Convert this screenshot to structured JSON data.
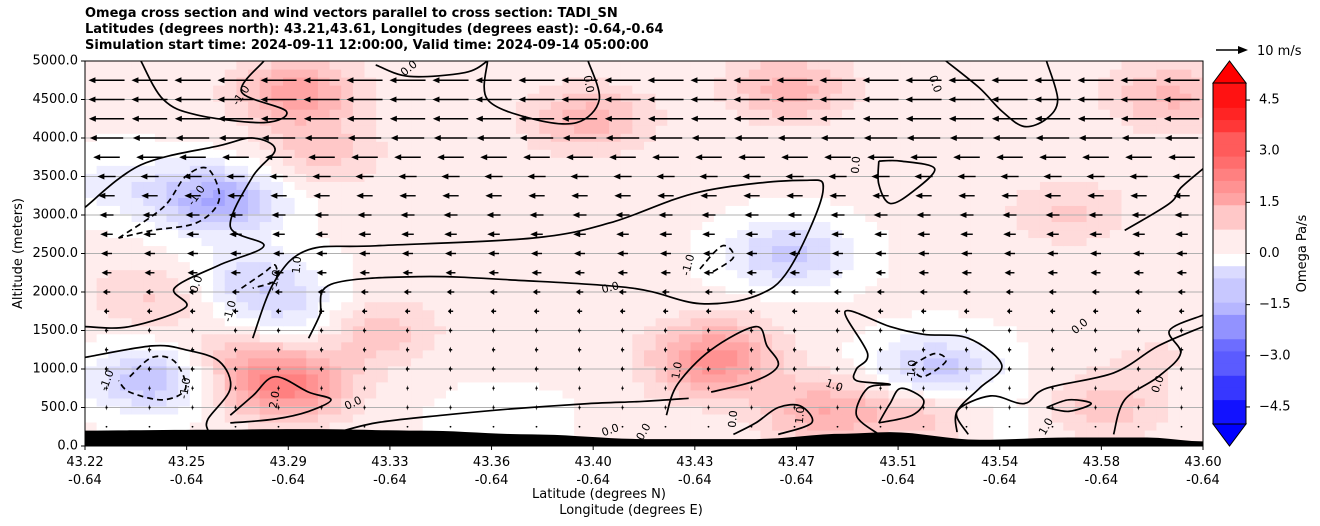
{
  "title_lines": [
    "Omega cross section and wind vectors parallel to cross section: TADI_SN",
    "Latitudes (degrees north): 43.21,43.61, Longitudes (degrees east): -0.64,-0.64",
    "Simulation start time: 2024-09-11 12:00:00, Valid time: 2024-09-14 05:00:00"
  ],
  "chart_data": {
    "type": "heatmap",
    "subtype": "cross-section filled contour with wind vectors",
    "ylabel": "Altitude (meters)",
    "xlabel": "Latitude (degrees N)",
    "xlabel2": "Longitude (degrees E)",
    "ylim": [
      0,
      5000
    ],
    "y_ticks": [
      "0.0",
      "500.0",
      "1000.0",
      "1500.0",
      "2000.0",
      "2500.0",
      "3000.0",
      "3500.0",
      "4000.0",
      "4500.0",
      "5000.0"
    ],
    "x_ticks_lat": [
      "43.22",
      "43.25",
      "43.29",
      "43.33",
      "43.36",
      "43.40",
      "43.43",
      "43.47",
      "43.51",
      "43.54",
      "43.58",
      "43.60"
    ],
    "x_ticks_lon": [
      "-0.64",
      "-0.64",
      "-0.64",
      "-0.64",
      "-0.64",
      "-0.64",
      "-0.64",
      "-0.64",
      "-0.64",
      "-0.64",
      "-0.64",
      "-0.64"
    ],
    "grid": "horizontal lines",
    "colorbar": {
      "label": "Omega Pa/s",
      "range": [
        -5,
        5
      ],
      "ticks": [
        "−4.5",
        "−3.0",
        "−1.5",
        "0.0",
        "1.5",
        "3.0",
        "4.5"
      ],
      "tick_values": [
        -4.5,
        -3.0,
        -1.5,
        0.0,
        1.5,
        3.0,
        4.5
      ],
      "colormap": "bwr"
    },
    "quiver_key": "10 m/s",
    "contour_labels": [
      "0.0",
      "-1.0",
      "1.0",
      "2.0"
    ],
    "blobs": [
      {
        "x": 0.19,
        "y": 4600,
        "v": 1.6
      },
      {
        "x": 0.45,
        "y": 4250,
        "v": 1.2
      },
      {
        "x": 0.63,
        "y": 4650,
        "v": 1.2
      },
      {
        "x": 0.97,
        "y": 4550,
        "v": 1.1
      },
      {
        "x": 0.21,
        "y": 3800,
        "v": 0.8
      },
      {
        "x": 0.03,
        "y": 3400,
        "v": -0.6
      },
      {
        "x": 0.12,
        "y": 3200,
        "v": -1.9
      },
      {
        "x": 0.88,
        "y": 3050,
        "v": 0.7
      },
      {
        "x": 0.63,
        "y": 2500,
        "v": -1.3
      },
      {
        "x": 0.15,
        "y": 2150,
        "v": -1.0
      },
      {
        "x": 0.06,
        "y": 1950,
        "v": 0.7
      },
      {
        "x": 0.19,
        "y": 1700,
        "v": -0.7
      },
      {
        "x": 0.06,
        "y": 880,
        "v": -1.5
      },
      {
        "x": 0.18,
        "y": 800,
        "v": 2.2
      },
      {
        "x": 0.13,
        "y": 1150,
        "v": 0.7
      },
      {
        "x": 0.26,
        "y": 1500,
        "v": 0.9
      },
      {
        "x": 0.57,
        "y": 1400,
        "v": 0.6
      },
      {
        "x": 0.56,
        "y": 1050,
        "v": 1.6
      },
      {
        "x": 0.66,
        "y": 450,
        "v": 1.3
      },
      {
        "x": 0.75,
        "y": 450,
        "v": 0.9
      },
      {
        "x": 0.76,
        "y": 1000,
        "v": -1.4
      },
      {
        "x": 0.91,
        "y": 500,
        "v": 0.9
      },
      {
        "x": 0.96,
        "y": 1200,
        "v": 0.3
      },
      {
        "x": 0.37,
        "y": 300,
        "v": -0.4
      },
      {
        "x": 0.83,
        "y": 350,
        "v": -0.3
      }
    ],
    "wind_u": [
      {
        "y": 4750,
        "u": -9.5
      },
      {
        "y": 4500,
        "u": -9.5
      },
      {
        "y": 4250,
        "u": -9.3
      },
      {
        "y": 4000,
        "u": -8.8
      },
      {
        "y": 3750,
        "u": -7.0
      },
      {
        "y": 3500,
        "u": -4.8
      },
      {
        "y": 3250,
        "u": -4.3
      },
      {
        "y": 3000,
        "u": -3.7
      },
      {
        "y": 2750,
        "u": -3.3
      },
      {
        "y": 2500,
        "u": -2.9
      },
      {
        "y": 2250,
        "u": -2.6
      },
      {
        "y": 2000,
        "u": -2.0
      },
      {
        "y": 1750,
        "u": -1.4
      },
      {
        "y": 1500,
        "u": -0.9
      },
      {
        "y": 1250,
        "u": -0.9
      },
      {
        "y": 1000,
        "u": -1.0
      },
      {
        "y": 750,
        "u": -0.6
      },
      {
        "y": 500,
        "u": -0.6
      },
      {
        "y": 250,
        "u": -0.4
      }
    ],
    "terrain_profile": [
      {
        "x": 0.0,
        "h": 200
      },
      {
        "x": 0.1,
        "h": 210
      },
      {
        "x": 0.2,
        "h": 220
      },
      {
        "x": 0.3,
        "h": 200
      },
      {
        "x": 0.4,
        "h": 150
      },
      {
        "x": 0.5,
        "h": 90
      },
      {
        "x": 0.6,
        "h": 90
      },
      {
        "x": 0.68,
        "h": 160
      },
      {
        "x": 0.72,
        "h": 180
      },
      {
        "x": 0.8,
        "h": 80
      },
      {
        "x": 0.88,
        "h": 110
      },
      {
        "x": 0.95,
        "h": 110
      },
      {
        "x": 1.0,
        "h": 60
      }
    ],
    "contour_lines": [
      {
        "style": "solid",
        "pts": [
          [
            0.05,
            5000
          ],
          [
            0.07,
            4500
          ],
          [
            0.1,
            4300
          ],
          [
            0.16,
            4200
          ],
          [
            0.18,
            4350
          ],
          [
            0.14,
            4600
          ],
          [
            0.16,
            5000
          ]
        ]
      },
      {
        "style": "solid",
        "pts": [
          [
            0.26,
            4950
          ],
          [
            0.29,
            4800
          ],
          [
            0.34,
            4850
          ],
          [
            0.36,
            5000
          ]
        ]
      },
      {
        "style": "solid",
        "pts": [
          [
            0.0,
            3100
          ],
          [
            0.05,
            3650
          ],
          [
            0.12,
            3900
          ],
          [
            0.15,
            4000
          ],
          [
            0.17,
            3850
          ],
          [
            0.15,
            3500
          ],
          [
            0.13,
            2850
          ],
          [
            0.16,
            2600
          ],
          [
            0.12,
            2350
          ],
          [
            0.08,
            2050
          ],
          [
            0.09,
            1800
          ],
          [
            0.04,
            1550
          ],
          [
            0.0,
            1550
          ]
        ]
      },
      {
        "style": "dashed",
        "pts": [
          [
            0.03,
            2700
          ],
          [
            0.07,
            3100
          ],
          [
            0.09,
            3500
          ],
          [
            0.11,
            3600
          ],
          [
            0.12,
            3200
          ],
          [
            0.1,
            2900
          ],
          [
            0.06,
            2800
          ],
          [
            0.03,
            2700
          ]
        ]
      },
      {
        "style": "solid",
        "pts": [
          [
            0.15,
            1400
          ],
          [
            0.17,
            2150
          ],
          [
            0.2,
            2550
          ],
          [
            0.26,
            2600
          ],
          [
            0.4,
            2700
          ],
          [
            0.47,
            2900
          ],
          [
            0.55,
            3300
          ],
          [
            0.64,
            3450
          ],
          [
            0.66,
            3300
          ],
          [
            0.63,
            2300
          ],
          [
            0.6,
            1950
          ],
          [
            0.55,
            1850
          ],
          [
            0.49,
            2050
          ],
          [
            0.39,
            2150
          ],
          [
            0.3,
            2200
          ],
          [
            0.22,
            2100
          ],
          [
            0.21,
            1700
          ],
          [
            0.2,
            1400
          ]
        ]
      },
      {
        "style": "dashed",
        "pts": [
          [
            0.14,
            2050
          ],
          [
            0.16,
            2250
          ],
          [
            0.17,
            2350
          ],
          [
            0.17,
            2150
          ],
          [
            0.15,
            2050
          ]
        ]
      },
      {
        "style": "dashed",
        "pts": [
          [
            0.55,
            2300
          ],
          [
            0.57,
            2600
          ],
          [
            0.58,
            2450
          ],
          [
            0.56,
            2250
          ]
        ]
      },
      {
        "style": "dashed",
        "pts": [
          [
            0.04,
            900
          ],
          [
            0.06,
            1150
          ],
          [
            0.08,
            1100
          ],
          [
            0.09,
            750
          ],
          [
            0.07,
            600
          ],
          [
            0.04,
            700
          ],
          [
            0.03,
            850
          ]
        ]
      },
      {
        "style": "solid",
        "pts": [
          [
            0.0,
            1150
          ],
          [
            0.06,
            1300
          ],
          [
            0.09,
            1250
          ],
          [
            0.12,
            1100
          ],
          [
            0.13,
            750
          ],
          [
            0.11,
            350
          ],
          [
            0.11,
            200
          ]
        ]
      },
      {
        "style": "solid",
        "pts": [
          [
            0.13,
            300
          ],
          [
            0.17,
            350
          ],
          [
            0.2,
            450
          ],
          [
            0.22,
            600
          ],
          [
            0.2,
            700
          ],
          [
            0.17,
            900
          ],
          [
            0.15,
            650
          ],
          [
            0.13,
            400
          ]
        ]
      },
      {
        "style": "solid",
        "pts": [
          [
            0.22,
            150
          ],
          [
            0.26,
            300
          ],
          [
            0.32,
            400
          ],
          [
            0.38,
            480
          ],
          [
            0.45,
            550
          ],
          [
            0.5,
            580
          ],
          [
            0.54,
            620
          ]
        ]
      },
      {
        "style": "solid",
        "pts": [
          [
            0.52,
            400
          ],
          [
            0.53,
            800
          ],
          [
            0.56,
            1250
          ],
          [
            0.6,
            1550
          ],
          [
            0.61,
            1300
          ],
          [
            0.62,
            1050
          ],
          [
            0.6,
            850
          ],
          [
            0.56,
            700
          ]
        ]
      },
      {
        "style": "solid",
        "pts": [
          [
            0.58,
            150
          ],
          [
            0.6,
            300
          ],
          [
            0.62,
            500
          ],
          [
            0.64,
            520
          ],
          [
            0.65,
            300
          ],
          [
            0.62,
            150
          ]
        ]
      },
      {
        "style": "solid",
        "pts": [
          [
            0.71,
            150
          ],
          [
            0.69,
            400
          ],
          [
            0.7,
            750
          ],
          [
            0.72,
            800
          ],
          [
            0.69,
            850
          ],
          [
            0.69,
            1000
          ],
          [
            0.7,
            1200
          ],
          [
            0.68,
            1750
          ],
          [
            0.72,
            1550
          ],
          [
            0.75,
            1450
          ],
          [
            0.79,
            1400
          ],
          [
            0.82,
            1050
          ],
          [
            0.8,
            750
          ],
          [
            0.78,
            450
          ],
          [
            0.78,
            180
          ]
        ]
      },
      {
        "style": "solid",
        "pts": [
          [
            0.71,
            300
          ],
          [
            0.72,
            550
          ],
          [
            0.73,
            750
          ],
          [
            0.75,
            600
          ],
          [
            0.74,
            400
          ],
          [
            0.71,
            300
          ]
        ]
      },
      {
        "style": "dashed",
        "pts": [
          [
            0.74,
            1050
          ],
          [
            0.76,
            1200
          ],
          [
            0.77,
            1100
          ],
          [
            0.75,
            900
          ],
          [
            0.74,
            1000
          ]
        ]
      },
      {
        "style": "solid",
        "pts": [
          [
            0.79,
            150
          ],
          [
            0.78,
            450
          ],
          [
            0.81,
            650
          ],
          [
            0.84,
            550
          ],
          [
            0.86,
            750
          ],
          [
            0.92,
            950
          ],
          [
            0.96,
            1300
          ],
          [
            1.0,
            1550
          ]
        ]
      },
      {
        "style": "solid",
        "pts": [
          [
            0.86,
            500
          ],
          [
            0.88,
            600
          ],
          [
            0.9,
            550
          ],
          [
            0.88,
            450
          ],
          [
            0.86,
            500
          ]
        ]
      },
      {
        "style": "solid",
        "pts": [
          [
            0.92,
            150
          ],
          [
            0.93,
            600
          ],
          [
            0.96,
            900
          ],
          [
            0.98,
            1200
          ],
          [
            0.97,
            1500
          ],
          [
            1.0,
            1700
          ]
        ]
      },
      {
        "style": "solid",
        "pts": [
          [
            0.36,
            5000
          ],
          [
            0.36,
            4500
          ],
          [
            0.4,
            4250
          ],
          [
            0.44,
            4200
          ],
          [
            0.46,
            4500
          ],
          [
            0.45,
            5000
          ]
        ]
      },
      {
        "style": "solid",
        "pts": [
          [
            0.77,
            5000
          ],
          [
            0.8,
            4650
          ],
          [
            0.82,
            4350
          ],
          [
            0.84,
            4150
          ],
          [
            0.86,
            4250
          ],
          [
            0.87,
            4500
          ],
          [
            0.86,
            5000
          ]
        ]
      },
      {
        "style": "solid",
        "pts": [
          [
            0.71,
            3700
          ],
          [
            0.73,
            3700
          ],
          [
            0.76,
            3600
          ],
          [
            0.74,
            3300
          ],
          [
            0.72,
            3150
          ],
          [
            0.71,
            3400
          ],
          [
            0.71,
            3700
          ]
        ]
      },
      {
        "style": "solid",
        "pts": [
          [
            0.93,
            2800
          ],
          [
            0.97,
            3150
          ],
          [
            0.98,
            3350
          ],
          [
            1.0,
            3600
          ]
        ]
      }
    ],
    "contour_label_marks": [
      {
        "text": "0.0",
        "x": 0.29,
        "y": 4900,
        "rot": -40
      },
      {
        "text": "-1.0",
        "x": 0.14,
        "y": 4550,
        "rot": -55
      },
      {
        "text": "-1.0",
        "x": 0.1,
        "y": 3250,
        "rot": -55
      },
      {
        "text": "0.0",
        "x": 0.45,
        "y": 4700,
        "rot": 80
      },
      {
        "text": "0.0",
        "x": 0.76,
        "y": 4700,
        "rot": 70
      },
      {
        "text": "0.0",
        "x": 0.69,
        "y": 3650,
        "rot": -85
      },
      {
        "text": "0.0",
        "x": 0.1,
        "y": 2100,
        "rot": -70
      },
      {
        "text": "-1.0",
        "x": 0.17,
        "y": 2150,
        "rot": -75
      },
      {
        "text": "1.0",
        "x": 0.19,
        "y": 2350,
        "rot": -85
      },
      {
        "text": "-1.0",
        "x": 0.13,
        "y": 1750,
        "rot": -75
      },
      {
        "text": "-1.0",
        "x": 0.54,
        "y": 2350,
        "rot": -75
      },
      {
        "text": "0.0",
        "x": 0.47,
        "y": 2050,
        "rot": -15
      },
      {
        "text": "-1.0",
        "x": 0.02,
        "y": 850,
        "rot": -70
      },
      {
        "text": "-1.0",
        "x": 0.09,
        "y": 750,
        "rot": -80
      },
      {
        "text": "2.0",
        "x": 0.17,
        "y": 600,
        "rot": -80
      },
      {
        "text": "0.0",
        "x": 0.24,
        "y": 550,
        "rot": -25
      },
      {
        "text": "1.0",
        "x": 0.53,
        "y": 980,
        "rot": -80
      },
      {
        "text": "0.0",
        "x": 0.58,
        "y": 350,
        "rot": -85
      },
      {
        "text": "0.0",
        "x": 0.47,
        "y": 200,
        "rot": -20
      },
      {
        "text": "0.0",
        "x": 0.5,
        "y": 180,
        "rot": -60
      },
      {
        "text": "1.0",
        "x": 0.64,
        "y": 400,
        "rot": -85
      },
      {
        "text": "1.0",
        "x": 0.67,
        "y": 780,
        "rot": 20
      },
      {
        "text": "-1.0",
        "x": 0.74,
        "y": 980,
        "rot": -85
      },
      {
        "text": "0.0",
        "x": 0.89,
        "y": 1550,
        "rot": -40
      },
      {
        "text": "0.0",
        "x": 0.96,
        "y": 800,
        "rot": -70
      },
      {
        "text": "1.0",
        "x": 0.86,
        "y": 250,
        "rot": -60
      }
    ]
  }
}
